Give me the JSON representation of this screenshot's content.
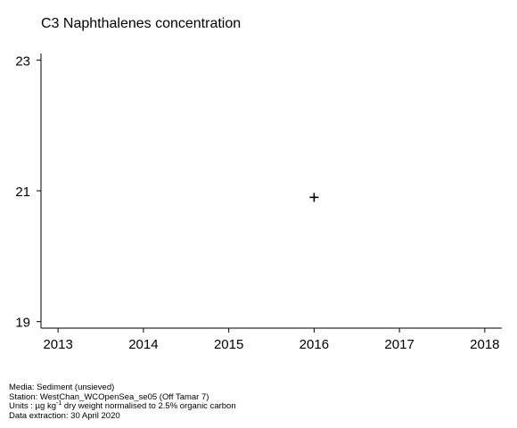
{
  "chart_data": {
    "type": "scatter",
    "title": "C3 Naphthalenes concentration",
    "xlabel": "",
    "ylabel": "",
    "x_ticks": [
      "2013",
      "2014",
      "2015",
      "2016",
      "2017",
      "2018"
    ],
    "y_ticks": [
      "19",
      "21",
      "23"
    ],
    "xlim": [
      2012.8,
      2018.2
    ],
    "ylim": [
      18.9,
      23.1
    ],
    "marker": "plus",
    "grid": false,
    "series": [
      {
        "points": [
          {
            "x": 2016,
            "y": 20.9
          }
        ]
      }
    ]
  },
  "footer": {
    "media": "Media: Sediment (unsieved)",
    "station": "Station: WestChan_WCOpenSea_se05 (Off Tamar 7)",
    "units_prefix": "Units : µg kg",
    "units_sup": "-1",
    "units_suffix": " dry weight normalised to 2.5% organic carbon",
    "extraction": "Data extraction: 30 April 2020"
  }
}
